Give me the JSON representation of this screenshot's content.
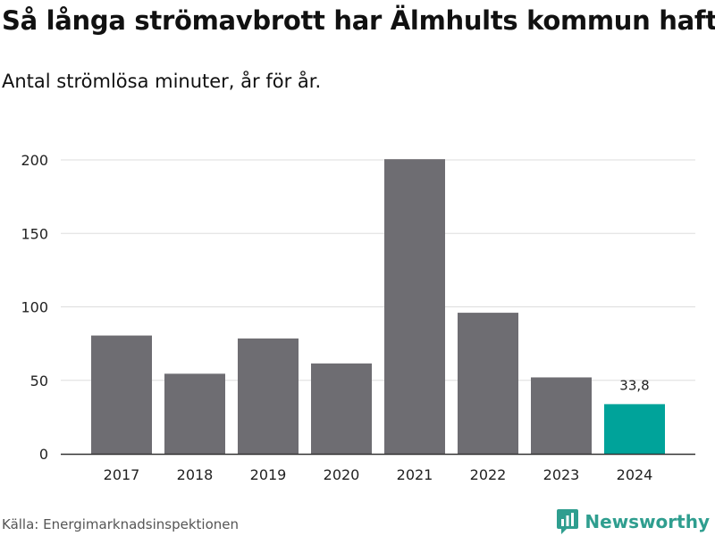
{
  "header": {
    "title": "Så långa strömavbrott har Älmhults kommun haft",
    "subtitle": "Antal strömlösa minuter, år för år."
  },
  "footer": {
    "source": "Källa: Energimarknadsinspektionen",
    "brand": "Newsworthy"
  },
  "colors": {
    "bar": "#6e6d72",
    "highlight": "#00a39a",
    "grid": "#dddddd",
    "axis": "#333333",
    "brand": "#2f9e8f"
  },
  "icons": {
    "brand_logo": "bar-chart-pin-icon"
  },
  "chart_data": {
    "type": "bar",
    "title": "Så långa strömavbrott har Älmhults kommun haft",
    "subtitle": "Antal strömlösa minuter, år för år.",
    "xlabel": "",
    "ylabel": "",
    "categories": [
      "2017",
      "2018",
      "2019",
      "2020",
      "2021",
      "2022",
      "2023",
      "2024"
    ],
    "values": [
      80.5,
      54.5,
      78.5,
      61.5,
      200.5,
      96.0,
      52.0,
      33.8
    ],
    "highlight_index": 7,
    "data_labels": [
      {
        "index": 7,
        "text": "33,8"
      }
    ],
    "ylim": [
      0,
      210
    ],
    "yticks": [
      0,
      50,
      100,
      150,
      200
    ],
    "grid": true
  }
}
